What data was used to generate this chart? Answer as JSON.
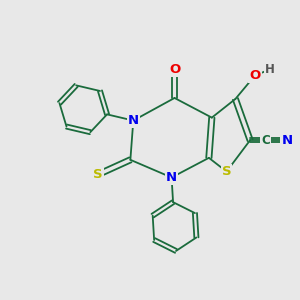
{
  "bg_color": "#e8e8e8",
  "bond_color": "#1a6b3c",
  "atom_colors": {
    "N": "#0000ee",
    "S": "#bbbb00",
    "O": "#ee0000",
    "C": "#1a6b3c",
    "H": "#555555"
  },
  "line_width": 1.3,
  "font_size": 9.5
}
